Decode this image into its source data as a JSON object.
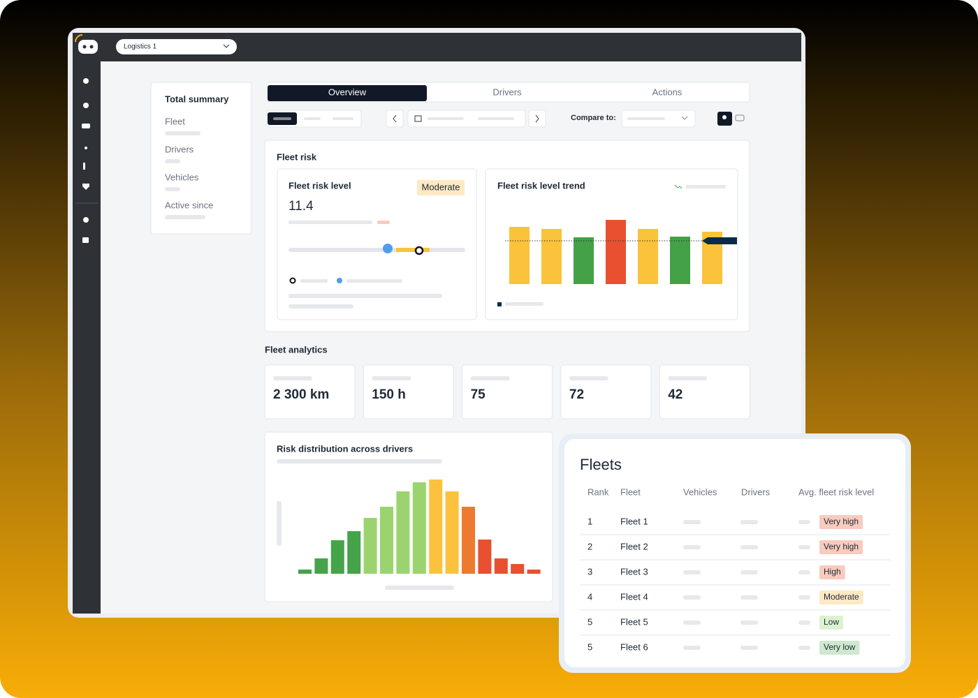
{
  "header": {
    "account": "Logistics 1"
  },
  "summary": {
    "title": "Total summary",
    "items": [
      "Fleet",
      "Drivers",
      "Vehicles",
      "Active since"
    ]
  },
  "tabs": [
    "Overview",
    "Drivers",
    "Actions"
  ],
  "compare_label": "Compare to:",
  "fleet_risk": {
    "title": "Fleet risk",
    "level": {
      "title": "Fleet risk level",
      "badge": "Moderate",
      "value": 11.4
    },
    "trend": {
      "title": "Fleet risk level trend",
      "values": [
        82,
        79,
        67,
        92,
        79,
        68,
        75
      ],
      "colors": [
        "#fbc23b",
        "#fbc23b",
        "#44a148",
        "#e8502f",
        "#fbc23b",
        "#44a148",
        "#fbc23b"
      ]
    }
  },
  "analytics": {
    "title": "Fleet analytics",
    "values": [
      "2 300 km",
      "150 h",
      "75",
      "72",
      "42"
    ]
  },
  "distribution": {
    "title": "Risk distribution across drivers",
    "values": [
      6,
      22,
      48,
      61,
      80,
      96,
      118,
      131,
      135,
      118,
      96,
      49,
      22,
      14,
      6
    ],
    "colors": [
      "#45a34a",
      "#45a34a",
      "#45a34a",
      "#45a34a",
      "#9bd46f",
      "#9bd46f",
      "#9bd46f",
      "#9bd46f",
      "#fcc23d",
      "#fcc23d",
      "#ed7a2f",
      "#e8502f",
      "#e8502f",
      "#e8502f",
      "#e8502f"
    ]
  },
  "fleets": {
    "title": "Fleets",
    "columns": [
      "Rank",
      "Fleet",
      "Vehicles",
      "Drivers",
      "Avg. fleet risk level"
    ],
    "rows": [
      {
        "rank": 1,
        "fleet": "Fleet 1",
        "level": "Very high",
        "color": "#f8cbbd"
      },
      {
        "rank": 2,
        "fleet": "Fleet 2",
        "level": "Very high",
        "color": "#f8cbbd"
      },
      {
        "rank": 3,
        "fleet": "Fleet 3",
        "level": "High",
        "color": "#f8cbbd"
      },
      {
        "rank": 4,
        "fleet": "Fleet 4",
        "level": "Moderate",
        "color": "#fde9c3"
      },
      {
        "rank": 5,
        "fleet": "Fleet 5",
        "level": "Low",
        "color": "#dcf2cf"
      },
      {
        "rank": 5,
        "fleet": "Fleet 6",
        "level": "Very low",
        "color": "#cfe8cf"
      }
    ]
  }
}
